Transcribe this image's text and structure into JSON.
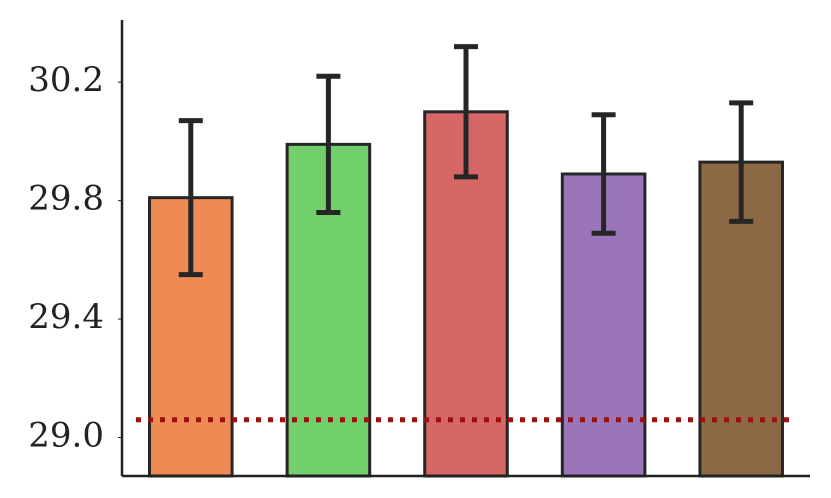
{
  "chart_data": {
    "type": "bar",
    "categories": [
      null,
      null,
      null,
      null,
      null
    ],
    "values": [
      29.81,
      29.99,
      30.1,
      29.89,
      29.93
    ],
    "errors": [
      0.26,
      0.23,
      0.22,
      0.2,
      0.2
    ],
    "colors": [
      "#f08a54",
      "#72d06c",
      "#d76666",
      "#9b75b9",
      "#8c6844"
    ],
    "ylim": [
      28.87,
      30.41
    ],
    "yticks": [
      {
        "value": 29,
        "label": "29.0"
      },
      29.4,
      29.8,
      30.2
    ],
    "reference_line": {
      "value": 29.06,
      "color": "#9b1010"
    },
    "grid": false
  }
}
